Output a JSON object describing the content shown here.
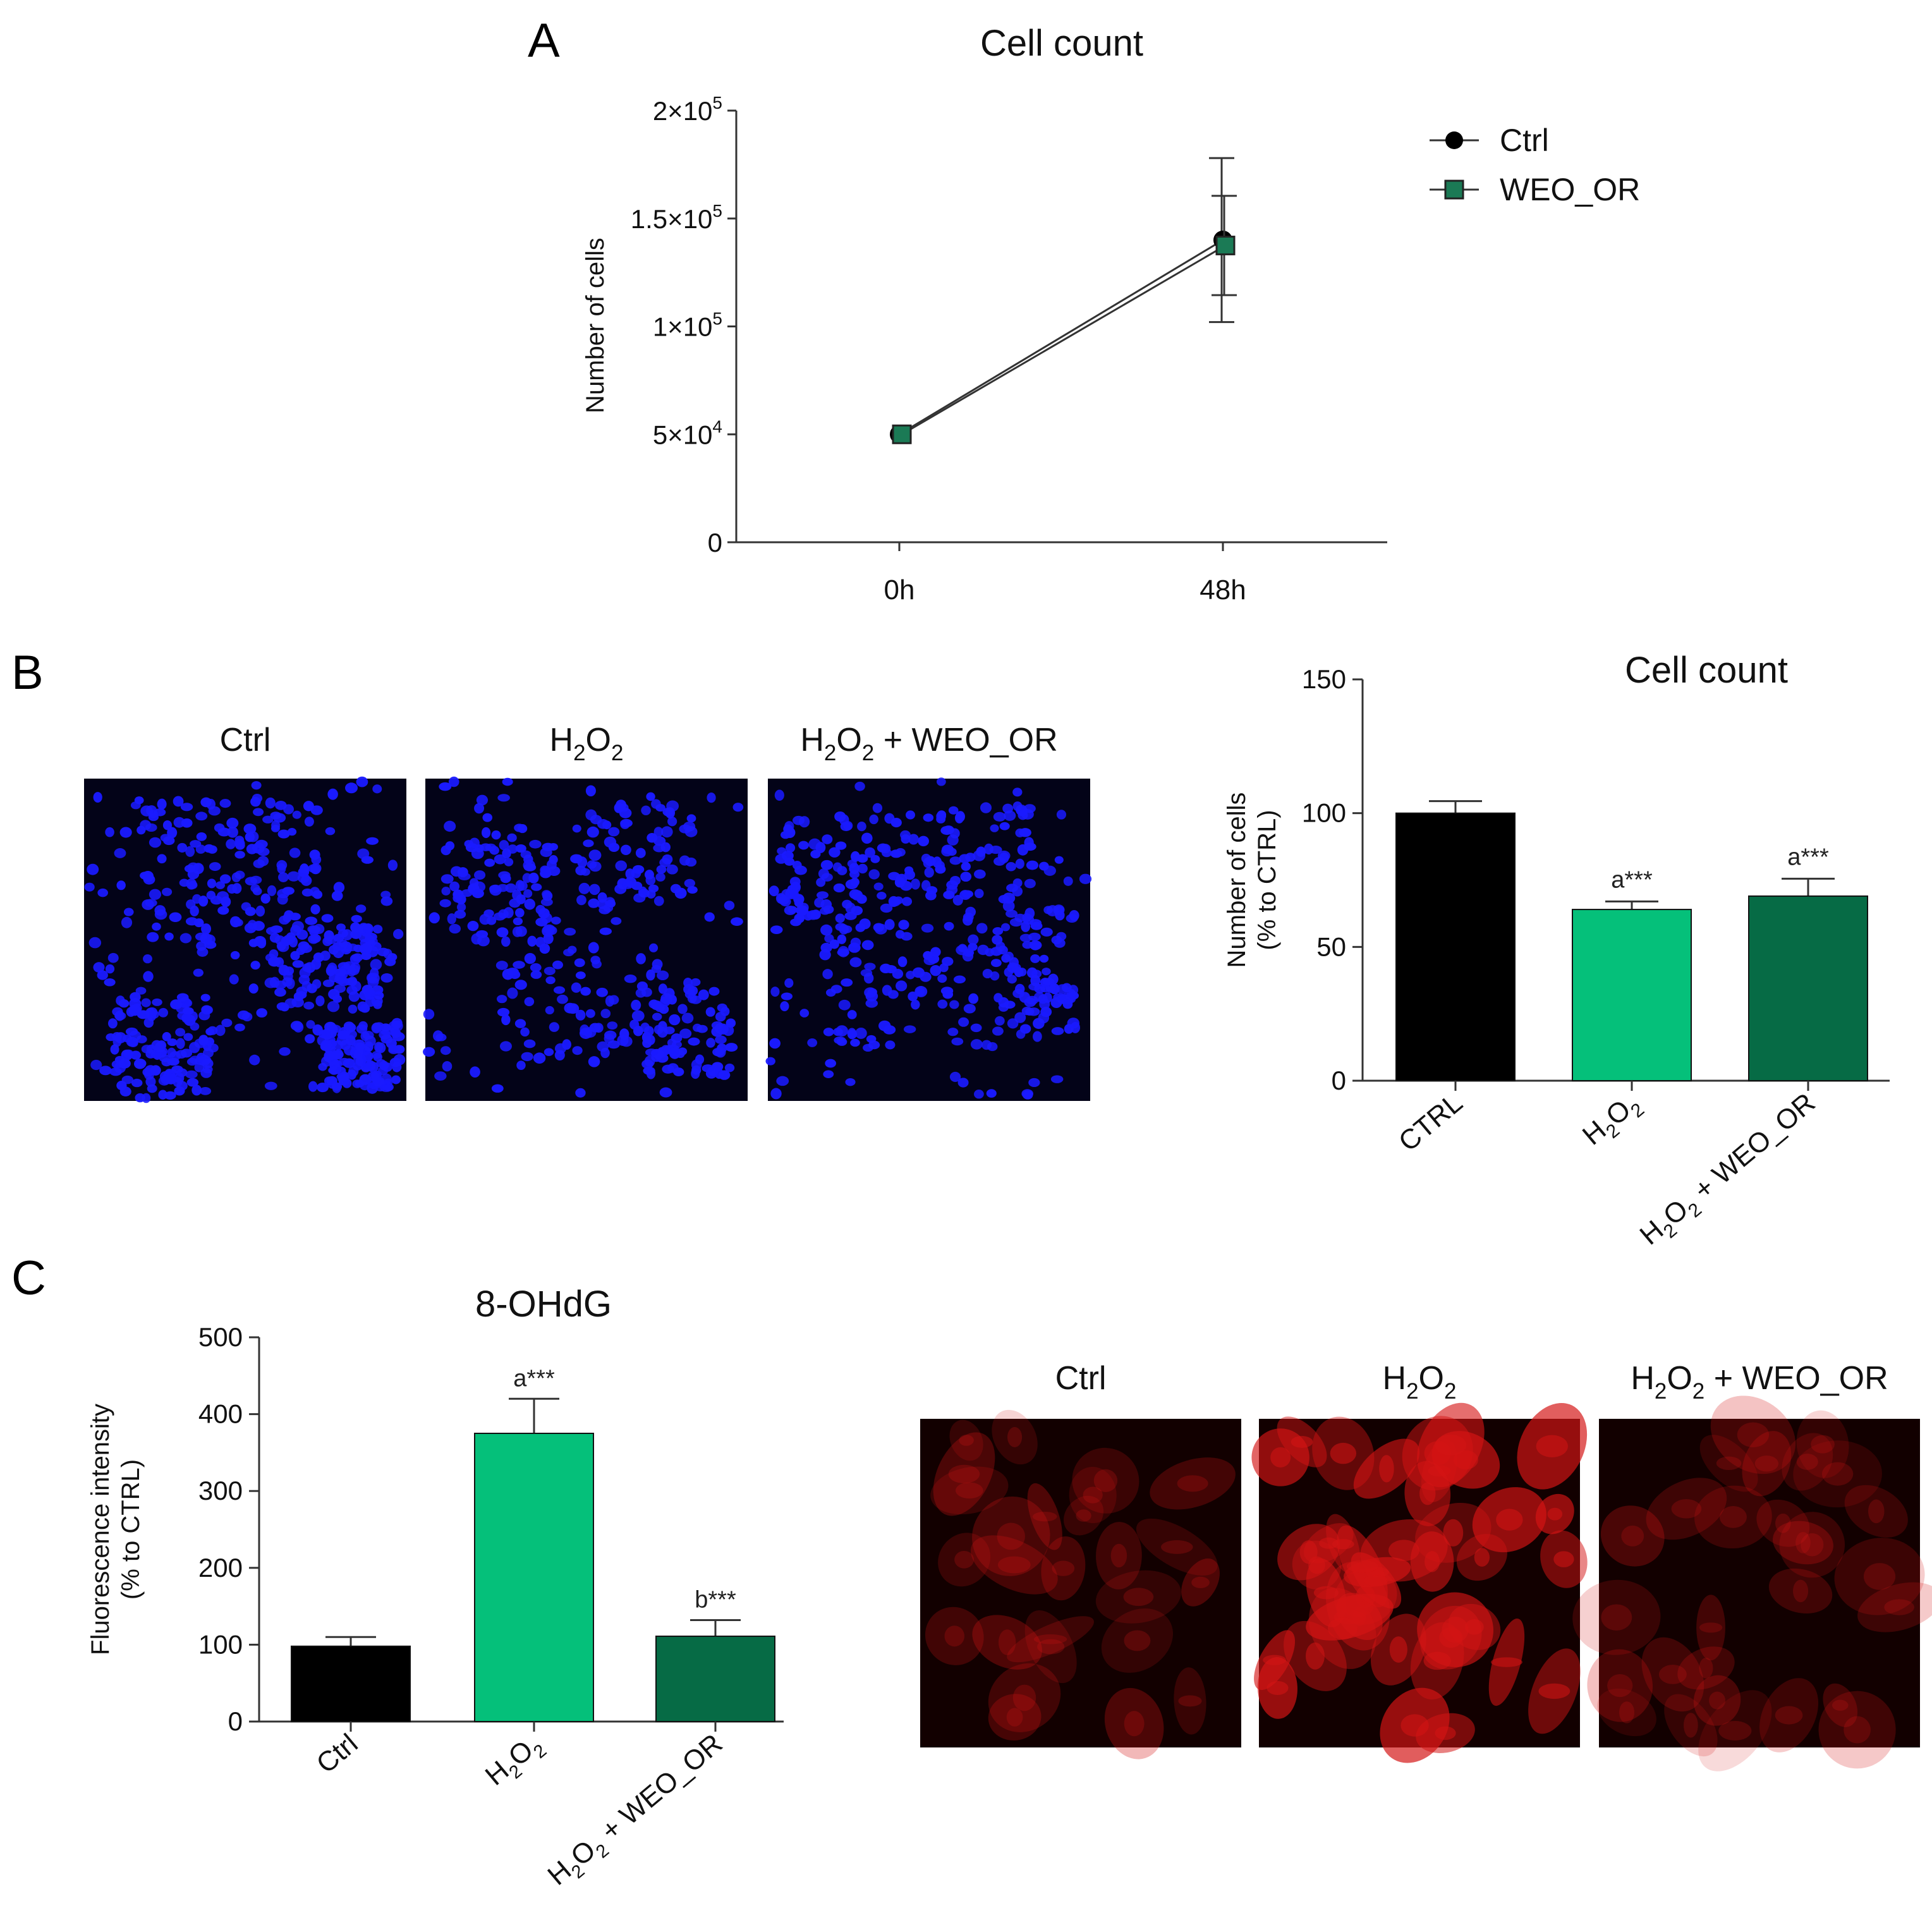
{
  "panels": {
    "a": "A",
    "b": "B",
    "c": "C"
  },
  "chart_data": [
    {
      "id": "A",
      "type": "line",
      "title": "Cell count",
      "xlabel": "",
      "ylabel": "Number of cells",
      "categories": [
        "0h",
        "48h"
      ],
      "yticks": [
        0,
        50000,
        100000,
        150000,
        200000
      ],
      "ytick_labels": [
        {
          "base": "0",
          "exp": ""
        },
        {
          "base": "5×10",
          "exp": "4"
        },
        {
          "base": "1×10",
          "exp": "5"
        },
        {
          "base": "1.5×10",
          "exp": "5"
        },
        {
          "base": "2×10",
          "exp": "5"
        }
      ],
      "ylim": [
        0,
        200000
      ],
      "legend_position": "top-right",
      "series": [
        {
          "name": "Ctrl",
          "marker": "circle",
          "color": "#000000",
          "values": [
            50000,
            140000
          ],
          "errors": [
            0,
            38000
          ]
        },
        {
          "name": "WEO_OR",
          "marker": "square",
          "color": "#1b7a55",
          "values": [
            50000,
            137500
          ],
          "errors": [
            0,
            23000
          ]
        }
      ]
    },
    {
      "id": "B",
      "type": "bar",
      "title": "Cell count",
      "xlabel": "",
      "ylabel": [
        "Number of cells",
        "(% to CTRL)"
      ],
      "categories": [
        {
          "pre": "CTRL"
        },
        {
          "pre": "H",
          "s1": "2",
          "mid": "O",
          "s2": "2",
          "post": ""
        },
        {
          "pre": "H",
          "s1": "2",
          "mid": "O",
          "s2": "2",
          "post": " + WEO_OR"
        }
      ],
      "values": [
        100,
        64,
        69
      ],
      "errors": [
        4.5,
        3,
        6.5
      ],
      "annotations": [
        "",
        "a***",
        "a***"
      ],
      "colors": [
        "#000000",
        "#05c07a",
        "#066b45"
      ],
      "yticks": [
        0,
        50,
        100,
        150
      ],
      "ylim": [
        0,
        150
      ]
    },
    {
      "id": "C",
      "type": "bar",
      "title": "8-OHdG",
      "xlabel": "",
      "ylabel": [
        "Fluorescence intensity",
        "(% to CTRL)"
      ],
      "categories": [
        {
          "pre": "Ctrl"
        },
        {
          "pre": "H",
          "s1": "2",
          "mid": "O",
          "s2": "2",
          "post": ""
        },
        {
          "pre": "H",
          "s1": "2",
          "mid": "O",
          "s2": "2",
          "post": " + WEO_OR"
        }
      ],
      "values": [
        98,
        375,
        111
      ],
      "errors": [
        12,
        45,
        21
      ],
      "annotations": [
        "",
        "a***",
        "b***"
      ],
      "colors": [
        "#000000",
        "#05c07a",
        "#066b45"
      ],
      "yticks": [
        0,
        100,
        200,
        300,
        400,
        500
      ],
      "ylim": [
        0,
        500
      ]
    }
  ],
  "micrographs_b": {
    "stain_color": "#1a1aff",
    "background": "#030318",
    "labels": [
      {
        "pre": "Ctrl"
      },
      {
        "pre": "H",
        "s1": "2",
        "mid": "O",
        "s2": "2",
        "post": ""
      },
      {
        "pre": "H",
        "s1": "2",
        "mid": "O",
        "s2": "2",
        "post": " + WEO_OR"
      }
    ]
  },
  "micrographs_c": {
    "stain_color": "#d41414",
    "background": "#120000",
    "labels": [
      {
        "pre": "Ctrl"
      },
      {
        "pre": "H",
        "s1": "2",
        "mid": "O",
        "s2": "2",
        "post": ""
      },
      {
        "pre": "H",
        "s1": "2",
        "mid": "O",
        "s2": "2",
        "post": " + WEO_OR"
      }
    ]
  }
}
